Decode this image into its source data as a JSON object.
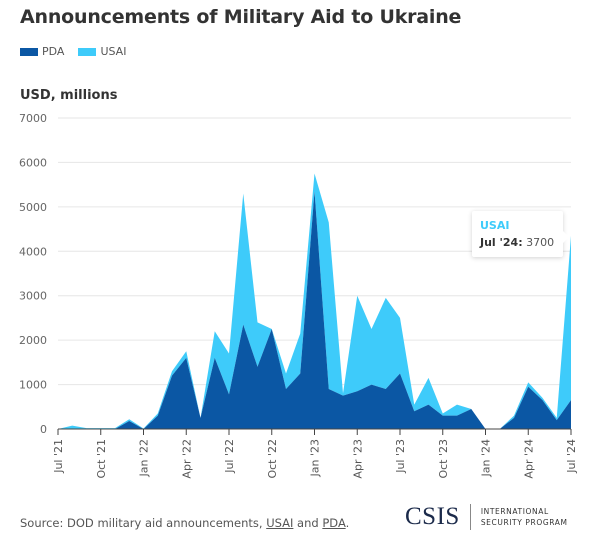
{
  "title": "Announcements of Military Aid to Ukraine",
  "legend": [
    {
      "name": "PDA",
      "color": "#0b57a4"
    },
    {
      "name": "USAI",
      "color": "#3ecbfa"
    }
  ],
  "y_unit": "USD, millions",
  "tooltip": {
    "series": "USAI",
    "label": "Jul '24:",
    "value": "3700",
    "color": "#3ecbfa"
  },
  "source": {
    "prefix": "Source: DOD military aid announcements, ",
    "link1": "USAI",
    "mid": " and ",
    "link2": "PDA",
    "suffix": "."
  },
  "logo": {
    "name": "CSIS",
    "line1": "INTERNATIONAL",
    "line2": "SECURITY PROGRAM"
  },
  "chart_data": {
    "type": "area",
    "stacked": true,
    "title": "Announcements of Military Aid to Ukraine",
    "xlabel": "",
    "ylabel": "USD, millions",
    "ylim": [
      0,
      7000
    ],
    "yticks": [
      0,
      1000,
      2000,
      3000,
      4000,
      5000,
      6000,
      7000
    ],
    "grid": true,
    "legend_position": "top-left",
    "xtick_labels": [
      "Jul '21",
      "Oct '21",
      "Jan '22",
      "Apr '22",
      "Jul '22",
      "Oct '22",
      "Jan '23",
      "Apr '23",
      "Jul '23",
      "Oct '23",
      "Jan '24",
      "Apr '24",
      "Jul '24"
    ],
    "x": [
      "Jul '21",
      "Aug '21",
      "Sep '21",
      "Oct '21",
      "Nov '21",
      "Dec '21",
      "Jan '22",
      "Feb '22",
      "Mar '22",
      "Apr '22",
      "May '22",
      "Jun '22",
      "Jul '22",
      "Aug '22",
      "Sep '22",
      "Oct '22",
      "Nov '22",
      "Dec '22",
      "Jan '23",
      "Feb '23",
      "Mar '23",
      "Apr '23",
      "May '23",
      "Jun '23",
      "Jul '23",
      "Aug '23",
      "Sep '23",
      "Oct '23",
      "Nov '23",
      "Dec '23",
      "Jan '24",
      "Feb '24",
      "Mar '24",
      "Apr '24",
      "May '24",
      "Jun '24",
      "Jul '24"
    ],
    "series": [
      {
        "name": "PDA",
        "color": "#0b57a4",
        "values": [
          0,
          0,
          0,
          0,
          0,
          180,
          0,
          300,
          1200,
          1600,
          250,
          1600,
          780,
          2350,
          1400,
          2250,
          900,
          1250,
          5350,
          900,
          750,
          850,
          1000,
          900,
          1250,
          400,
          550,
          300,
          300,
          450,
          0,
          0,
          250,
          950,
          650,
          200,
          650
        ]
      },
      {
        "name": "USAI",
        "color": "#3ecbfa",
        "values": [
          0,
          75,
          20,
          20,
          20,
          40,
          10,
          50,
          100,
          150,
          0,
          600,
          920,
          2950,
          1000,
          0,
          350,
          900,
          400,
          3750,
          50,
          2150,
          1250,
          2050,
          1250,
          150,
          600,
          50,
          250,
          0,
          0,
          0,
          50,
          100,
          50,
          50,
          3700
        ]
      }
    ]
  }
}
